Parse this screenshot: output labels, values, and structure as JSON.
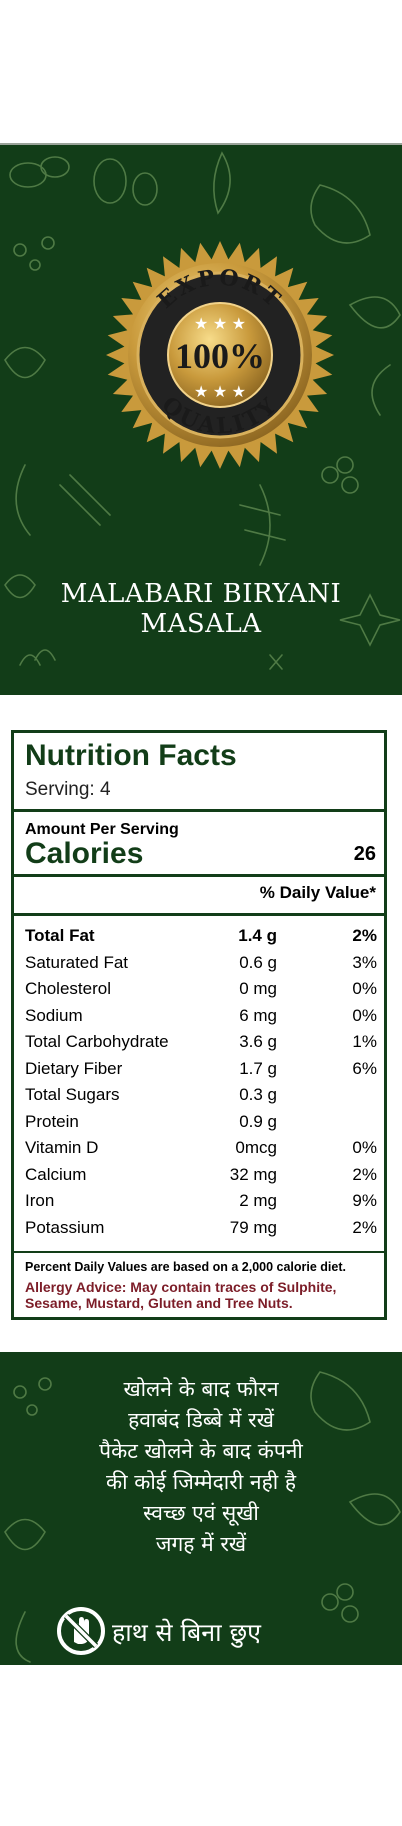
{
  "header": {
    "badge": {
      "top_text": "EXPORT",
      "center_text": "100%",
      "bottom_text": "QUALITY",
      "stars_icon": "star-icon"
    },
    "product_name_line1": "MALABARI BIRYANI",
    "product_name_line2": "MASALA"
  },
  "nutrition": {
    "title": "Nutrition Facts",
    "serving": "Serving: 4",
    "amount_per_serving": "Amount Per Serving",
    "calories_label": "Calories",
    "calories_value": "26",
    "daily_value_header": "% Daily Value*",
    "rows": [
      {
        "name": "Total Fat",
        "amount": "1.4 g",
        "dv": "2%"
      },
      {
        "name": "Saturated Fat",
        "amount": "0.6 g",
        "dv": "3%"
      },
      {
        "name": "Cholesterol",
        "amount": "0 mg",
        "dv": "0%"
      },
      {
        "name": "Sodium",
        "amount": "6 mg",
        "dv": "0%"
      },
      {
        "name": "Total Carbohydrate",
        "amount": "3.6 g",
        "dv": "1%"
      },
      {
        "name": "Dietary Fiber",
        "amount": "1.7 g",
        "dv": "6%"
      },
      {
        "name": "Total Sugars",
        "amount": "0.3 g",
        "dv": ""
      },
      {
        "name": "Protein",
        "amount": "0.9 g",
        "dv": ""
      },
      {
        "name": "Vitamin D",
        "amount": "0mcg",
        "dv": "0%"
      },
      {
        "name": "Calcium",
        "amount": "32 mg",
        "dv": "2%"
      },
      {
        "name": "Iron",
        "amount": "2 mg",
        "dv": "9%"
      },
      {
        "name": "Potassium",
        "amount": "79 mg",
        "dv": "2%"
      }
    ],
    "footnote": "Percent Daily Values are based on a 2,000 calorie diet.",
    "allergy": "Allergy Advice: May contain traces of Sulphite, Sesame, Mustard, Gluten and Tree Nuts."
  },
  "instructions": {
    "lines": [
      "खोलने के बाद फौरन",
      "हवाबंद डिब्बे में रखें",
      "पैकेट खोलने के बाद कंपनी",
      "की कोई जिम्मेदारी नही है",
      "स्वच्छ एवं सूखी",
      "जगह में रखें"
    ],
    "no_hands_icon": "no-hands-icon",
    "no_hands_text": "हाथ से बिना छुए"
  },
  "colors": {
    "panel_green": "#123d18",
    "gold": "#c99a3c",
    "allergy_red": "#7c1d28"
  }
}
